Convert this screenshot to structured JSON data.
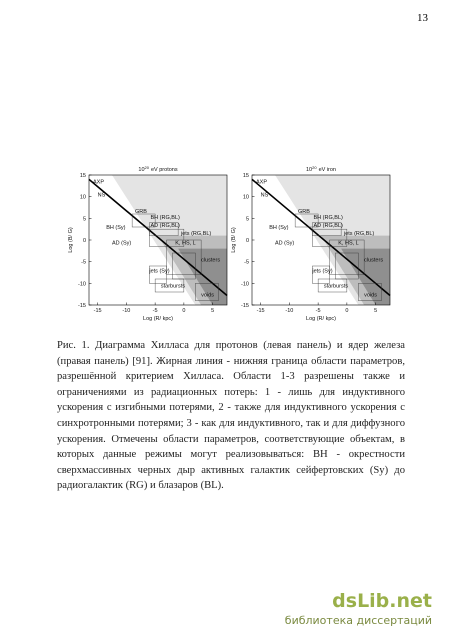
{
  "page_number": "13",
  "figure": {
    "panels": [
      {
        "title": {
          "base": "10",
          "exponent": "20",
          "text": "eV protons"
        },
        "xlabel": "Log (R/ kpc)",
        "ylabel": "Log (B/ G)",
        "xlim": [
          -16.5,
          7.5
        ],
        "ylim": [
          -15,
          15
        ],
        "xticks": [
          -15,
          -10,
          -5,
          0,
          5
        ],
        "yticks": [
          15,
          10,
          5,
          0,
          -5,
          -10,
          -15
        ],
        "regions": [
          "AXP",
          "NS",
          "GRB",
          "BH (RG,BL)",
          "AD (RG,BL)",
          "jets (RG,BL)",
          "BH (Sy)",
          "AD (Sy)",
          "K, HS, L",
          "clusters",
          "jets (Sy)",
          "starbursts",
          "voids"
        ]
      },
      {
        "title": {
          "base": "10",
          "exponent": "20",
          "text": "eV iron"
        },
        "xlabel": "Log (R/ kpc)",
        "ylabel": "Log (B/ G)",
        "xlim": [
          -16.5,
          7.5
        ],
        "ylim": [
          -15,
          15
        ],
        "xticks": [
          -15,
          -10,
          -5,
          0,
          5
        ],
        "yticks": [
          15,
          10,
          5,
          0,
          -5,
          -10,
          -15
        ],
        "regions": [
          "AXP",
          "NS",
          "GRB",
          "BH (RG,BL)",
          "AD (RG,BL)",
          "jets (RG,BL)",
          "BH (Sy)",
          "AD (Sy)",
          "K, HS, L",
          "clusters",
          "jets (Sy)",
          "starbursts",
          "voids"
        ]
      }
    ]
  },
  "caption": "Рис. 1. Диаграмма Хилласа для протонов (левая панель) и ядер железа (правая панель) [91]. Жирная линия - нижняя граница области параметров, разрешённой критерием Хилласа. Области 1-3 разрешены также и ограничениями из радиационных потерь: 1 - лишь для индуктивного ускорения с изгибными потерями, 2 - также для индуктивного ускорения с синхротронными потерями; 3 - как для индуктивного, так и для диффузного ускорения. Отмечены области параметров, соответствующие объектам, в которых данные режимы могут реализовываться: BH - окрестности сверхмассивных черных дыр активных галактик сейфертовских (Sy) до радиогалактик (RG) и блазаров (BL).",
  "watermark": {
    "logo": "dsLib.net",
    "text": "библиотека диссертаций"
  }
}
